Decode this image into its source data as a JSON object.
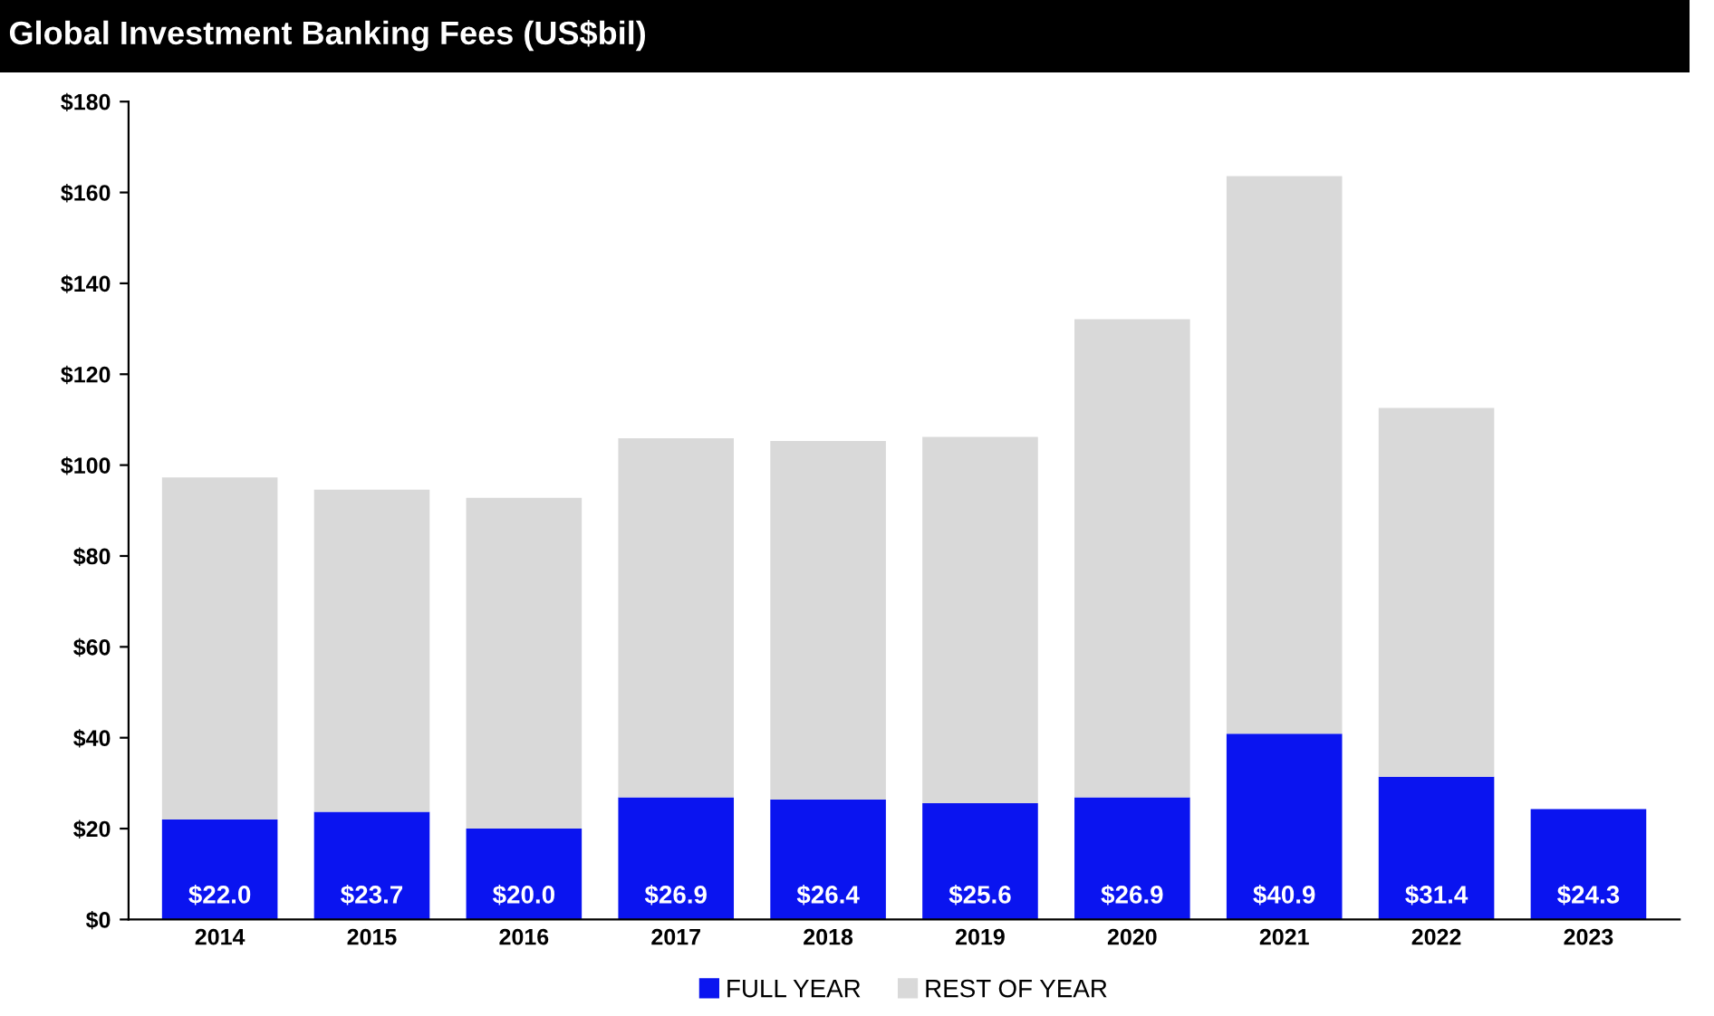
{
  "chart_data": {
    "type": "bar",
    "title": "Global Investment Banking Fees (US$bil)",
    "stacked": true,
    "categories": [
      "2014",
      "2015",
      "2016",
      "2017",
      "2018",
      "2019",
      "2020",
      "2021",
      "2022",
      "2023"
    ],
    "series": [
      {
        "name": "FULL YEAR",
        "color": "#0a14f0",
        "values": [
          22.0,
          23.7,
          20.0,
          26.9,
          26.4,
          25.6,
          26.9,
          40.9,
          31.4,
          24.3
        ],
        "value_labels": [
          "$22.0",
          "$23.7",
          "$20.0",
          "$26.9",
          "$26.4",
          "$25.6",
          "$26.9",
          "$40.9",
          "$31.4",
          "$24.3"
        ]
      },
      {
        "name": "REST OF YEAR",
        "color": "#d9d9d9",
        "values": [
          75.3,
          70.9,
          72.8,
          79.0,
          78.9,
          80.6,
          105.2,
          122.7,
          81.2,
          null
        ]
      }
    ],
    "ylim": [
      0,
      180
    ],
    "yticks": [
      {
        "value": 0,
        "label": "$0"
      },
      {
        "value": 20,
        "label": "$20"
      },
      {
        "value": 40,
        "label": "$40"
      },
      {
        "value": 60,
        "label": "$60"
      },
      {
        "value": 80,
        "label": "$80"
      },
      {
        "value": 100,
        "label": "$100"
      },
      {
        "value": 120,
        "label": "$120"
      },
      {
        "value": 140,
        "label": "$140"
      },
      {
        "value": 160,
        "label": "$160"
      },
      {
        "value": 180,
        "label": "$180"
      }
    ],
    "grid": false,
    "legend": "bottom"
  }
}
